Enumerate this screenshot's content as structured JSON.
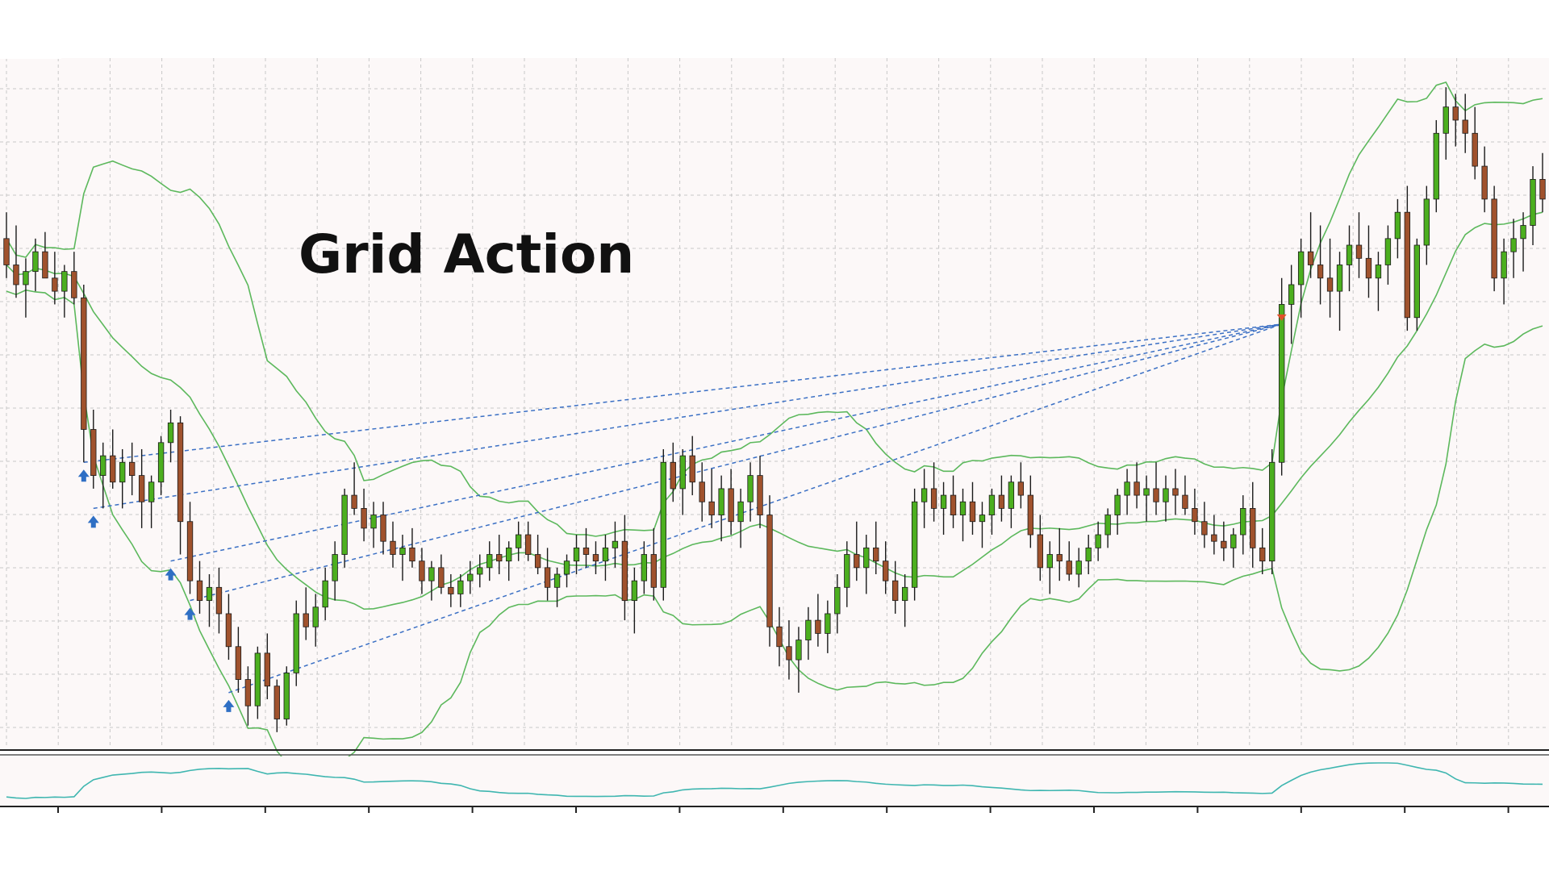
{
  "title": "Grid Action",
  "colors": {
    "background": "#ffffff",
    "plot_background": "#fcf8f8",
    "grid": "#c8c8c8",
    "bollinger": "#5cb85c",
    "candle_up": "#4caf1f",
    "candle_down": "#a0522d",
    "wick": "#1a1a1a",
    "grid_lines": "#3a6fc4",
    "buy_arrow": "#2f6fc4",
    "sell_arrow": "#e0502a",
    "oscillator": "#3fb6b0",
    "highlight_candle": "#d8f030"
  },
  "icons": {
    "buy_marker": "blue-up-arrow-icon",
    "sell_marker": "orange-down-arrow-icon"
  },
  "chart_data": {
    "type": "candlestick",
    "grid": true,
    "ylim": [
      0,
      100
    ],
    "xlim": [
      0,
      200
    ],
    "candles": [
      [
        0,
        76,
        80,
        70,
        72
      ],
      [
        1,
        72,
        78,
        67,
        69
      ],
      [
        2,
        69,
        73,
        64,
        71
      ],
      [
        3,
        71,
        76,
        68,
        74
      ],
      [
        4,
        74,
        77,
        70,
        70
      ],
      [
        5,
        70,
        74,
        66,
        68
      ],
      [
        6,
        68,
        72,
        64,
        71
      ],
      [
        7,
        71,
        74,
        66,
        67
      ],
      [
        8,
        67,
        69,
        42,
        47
      ],
      [
        9,
        47,
        50,
        38,
        40
      ],
      [
        10,
        40,
        45,
        35,
        43
      ],
      [
        11,
        43,
        47,
        38,
        39
      ],
      [
        12,
        39,
        44,
        35,
        42
      ],
      [
        13,
        42,
        45,
        37,
        40
      ],
      [
        14,
        40,
        44,
        32,
        36
      ],
      [
        15,
        36,
        40,
        32,
        39
      ],
      [
        16,
        39,
        46,
        37,
        45
      ],
      [
        17,
        45,
        50,
        42,
        48
      ],
      [
        18,
        48,
        49,
        28,
        33
      ],
      [
        19,
        33,
        36,
        22,
        24
      ],
      [
        20,
        24,
        27,
        19,
        21
      ],
      [
        21,
        21,
        25,
        17,
        23
      ],
      [
        22,
        23,
        26,
        16,
        19
      ],
      [
        23,
        19,
        22,
        12,
        14
      ],
      [
        24,
        14,
        17,
        7,
        9
      ],
      [
        25,
        9,
        11,
        2,
        5
      ],
      [
        26,
        5,
        14,
        3,
        13
      ],
      [
        27,
        13,
        16,
        6,
        8
      ],
      [
        28,
        8,
        9,
        1,
        3
      ],
      [
        29,
        3,
        11,
        2,
        10
      ],
      [
        30,
        10,
        21,
        8,
        19
      ],
      [
        31,
        19,
        23,
        15,
        17
      ],
      [
        32,
        17,
        22,
        14,
        20
      ],
      [
        33,
        20,
        26,
        18,
        24
      ],
      [
        34,
        24,
        30,
        21,
        28
      ],
      [
        35,
        28,
        38,
        26,
        37
      ],
      [
        36,
        37,
        42,
        34,
        35
      ],
      [
        37,
        35,
        38,
        30,
        32
      ],
      [
        38,
        32,
        36,
        29,
        34
      ],
      [
        39,
        34,
        36,
        28,
        30
      ],
      [
        40,
        30,
        33,
        26,
        28
      ],
      [
        41,
        28,
        31,
        24,
        29
      ],
      [
        42,
        29,
        32,
        26,
        27
      ],
      [
        43,
        27,
        29,
        22,
        24
      ],
      [
        44,
        24,
        27,
        21,
        26
      ],
      [
        45,
        26,
        28,
        22,
        23
      ],
      [
        46,
        23,
        25,
        20,
        22
      ],
      [
        47,
        22,
        25,
        20,
        24
      ],
      [
        48,
        24,
        27,
        22,
        25
      ],
      [
        49,
        25,
        28,
        23,
        26
      ],
      [
        50,
        26,
        30,
        24,
        28
      ],
      [
        51,
        28,
        31,
        25,
        27
      ],
      [
        52,
        27,
        30,
        24,
        29
      ],
      [
        53,
        29,
        33,
        27,
        31
      ],
      [
        54,
        31,
        33,
        27,
        28
      ],
      [
        55,
        28,
        31,
        25,
        26
      ],
      [
        56,
        26,
        29,
        21,
        23
      ],
      [
        57,
        23,
        26,
        20,
        25
      ],
      [
        58,
        25,
        28,
        23,
        27
      ],
      [
        59,
        27,
        31,
        25,
        29
      ],
      [
        60,
        29,
        32,
        26,
        28
      ],
      [
        61,
        28,
        30,
        25,
        27
      ],
      [
        62,
        27,
        31,
        24,
        29
      ],
      [
        63,
        29,
        33,
        26,
        30
      ],
      [
        64,
        30,
        34,
        18,
        21
      ],
      [
        65,
        21,
        26,
        16,
        24
      ],
      [
        66,
        24,
        30,
        22,
        28
      ],
      [
        67,
        28,
        32,
        21,
        23
      ],
      [
        68,
        23,
        44,
        21,
        42
      ],
      [
        69,
        42,
        45,
        36,
        38
      ],
      [
        70,
        38,
        44,
        34,
        43
      ],
      [
        71,
        43,
        46,
        37,
        39
      ],
      [
        72,
        39,
        42,
        33,
        36
      ],
      [
        73,
        36,
        41,
        32,
        34
      ],
      [
        74,
        34,
        40,
        30,
        38
      ],
      [
        75,
        38,
        41,
        31,
        33
      ],
      [
        76,
        33,
        38,
        29,
        36
      ],
      [
        77,
        36,
        42,
        33,
        40
      ],
      [
        78,
        40,
        43,
        32,
        34
      ],
      [
        79,
        34,
        37,
        14,
        17
      ],
      [
        80,
        17,
        20,
        11,
        14
      ],
      [
        81,
        14,
        18,
        9,
        12
      ],
      [
        82,
        12,
        17,
        7,
        15
      ],
      [
        83,
        15,
        20,
        12,
        18
      ],
      [
        84,
        18,
        22,
        14,
        16
      ],
      [
        85,
        16,
        21,
        13,
        19
      ],
      [
        86,
        19,
        25,
        16,
        23
      ],
      [
        87,
        23,
        30,
        20,
        28
      ],
      [
        88,
        28,
        33,
        24,
        26
      ],
      [
        89,
        26,
        31,
        22,
        29
      ],
      [
        90,
        29,
        33,
        25,
        27
      ],
      [
        91,
        27,
        30,
        22,
        24
      ],
      [
        92,
        24,
        27,
        19,
        21
      ],
      [
        93,
        21,
        25,
        17,
        23
      ],
      [
        94,
        23,
        38,
        21,
        36
      ],
      [
        95,
        36,
        41,
        32,
        38
      ],
      [
        96,
        38,
        42,
        33,
        35
      ],
      [
        97,
        35,
        39,
        31,
        37
      ],
      [
        98,
        37,
        40,
        32,
        34
      ],
      [
        99,
        34,
        38,
        30,
        36
      ],
      [
        100,
        36,
        39,
        31,
        33
      ],
      [
        101,
        33,
        36,
        29,
        34
      ],
      [
        102,
        34,
        38,
        31,
        37
      ],
      [
        103,
        37,
        40,
        33,
        35
      ],
      [
        104,
        35,
        40,
        32,
        39
      ],
      [
        105,
        39,
        42,
        35,
        37
      ],
      [
        106,
        37,
        40,
        29,
        31
      ],
      [
        107,
        31,
        34,
        24,
        26
      ],
      [
        108,
        26,
        30,
        22,
        28
      ],
      [
        109,
        28,
        32,
        24,
        27
      ],
      [
        110,
        27,
        30,
        24,
        25
      ],
      [
        111,
        25,
        29,
        23,
        27
      ],
      [
        112,
        27,
        31,
        25,
        29
      ],
      [
        113,
        29,
        33,
        27,
        31
      ],
      [
        114,
        31,
        35,
        29,
        34
      ],
      [
        115,
        34,
        38,
        31,
        37
      ],
      [
        116,
        37,
        41,
        34,
        39
      ],
      [
        117,
        39,
        42,
        35,
        37
      ],
      [
        118,
        37,
        40,
        33,
        38
      ],
      [
        119,
        38,
        42,
        34,
        36
      ],
      [
        120,
        36,
        40,
        33,
        38
      ],
      [
        121,
        38,
        41,
        34,
        37
      ],
      [
        122,
        37,
        40,
        34,
        35
      ],
      [
        123,
        35,
        38,
        31,
        33
      ],
      [
        124,
        33,
        36,
        29,
        31
      ],
      [
        125,
        31,
        34,
        28,
        30
      ],
      [
        126,
        30,
        33,
        27,
        29
      ],
      [
        127,
        29,
        32,
        26,
        31
      ],
      [
        128,
        31,
        37,
        28,
        35
      ],
      [
        129,
        35,
        39,
        26,
        29
      ],
      [
        130,
        29,
        32,
        25,
        27
      ],
      [
        131,
        27,
        44,
        25,
        42
      ],
      [
        132,
        42,
        70,
        40,
        66
      ],
      [
        133,
        66,
        72,
        60,
        69
      ],
      [
        134,
        69,
        76,
        64,
        74
      ],
      [
        135,
        74,
        80,
        70,
        72
      ],
      [
        136,
        72,
        78,
        66,
        70
      ],
      [
        137,
        70,
        76,
        64,
        68
      ],
      [
        138,
        68,
        74,
        62,
        72
      ],
      [
        139,
        72,
        78,
        68,
        75
      ],
      [
        140,
        75,
        80,
        70,
        73
      ],
      [
        141,
        73,
        78,
        67,
        70
      ],
      [
        142,
        70,
        74,
        65,
        72
      ],
      [
        143,
        72,
        78,
        69,
        76
      ],
      [
        144,
        76,
        82,
        73,
        80
      ],
      [
        145,
        80,
        84,
        62,
        64
      ],
      [
        146,
        64,
        76,
        62,
        75
      ],
      [
        147,
        75,
        84,
        72,
        82
      ],
      [
        148,
        82,
        94,
        80,
        92
      ],
      [
        149,
        92,
        99,
        88,
        96
      ],
      [
        150,
        96,
        98,
        90,
        94
      ],
      [
        151,
        94,
        98,
        89,
        92
      ],
      [
        152,
        92,
        96,
        85,
        87
      ],
      [
        153,
        87,
        90,
        80,
        82
      ],
      [
        154,
        82,
        84,
        68,
        70
      ],
      [
        155,
        70,
        76,
        66,
        74
      ],
      [
        156,
        74,
        79,
        70,
        76
      ],
      [
        157,
        76,
        80,
        71,
        78
      ],
      [
        158,
        78,
        87,
        75,
        85
      ],
      [
        159,
        85,
        89,
        80,
        82
      ]
    ],
    "entries": [
      {
        "type": "buy",
        "index": 8,
        "price": 42
      },
      {
        "type": "buy",
        "index": 9,
        "price": 35
      },
      {
        "type": "buy",
        "index": 17,
        "price": 27
      },
      {
        "type": "buy",
        "index": 19,
        "price": 21
      },
      {
        "type": "buy",
        "index": 23,
        "price": 7
      },
      {
        "type": "sell",
        "index": 132,
        "price": 63
      }
    ]
  }
}
